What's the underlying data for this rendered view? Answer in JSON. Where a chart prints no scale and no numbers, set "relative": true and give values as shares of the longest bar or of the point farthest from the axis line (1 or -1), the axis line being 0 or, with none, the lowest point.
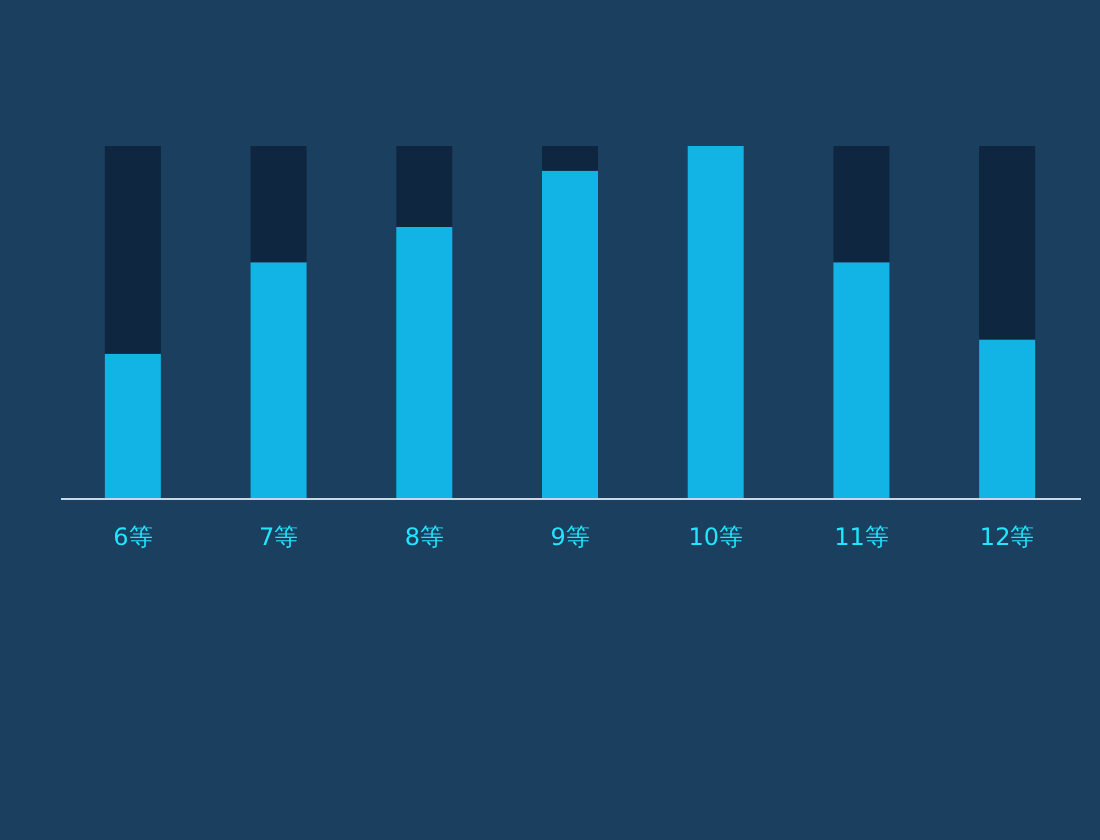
{
  "chart_data": {
    "type": "bar",
    "relative": true,
    "stacked": true,
    "categories": [
      "6等",
      "7等",
      "8等",
      "9等",
      "10等",
      "11等",
      "12等"
    ],
    "series": [
      {
        "color": "#12b4e6",
        "values": [
          0.41,
          0.67,
          0.77,
          0.93,
          1,
          0.67,
          0.45
        ]
      },
      {
        "color": "#0f2640",
        "values": [
          0.59,
          0.33,
          0.23,
          0.07,
          0,
          0.33,
          0.55
        ]
      }
    ],
    "legend": false,
    "grid": false
  }
}
